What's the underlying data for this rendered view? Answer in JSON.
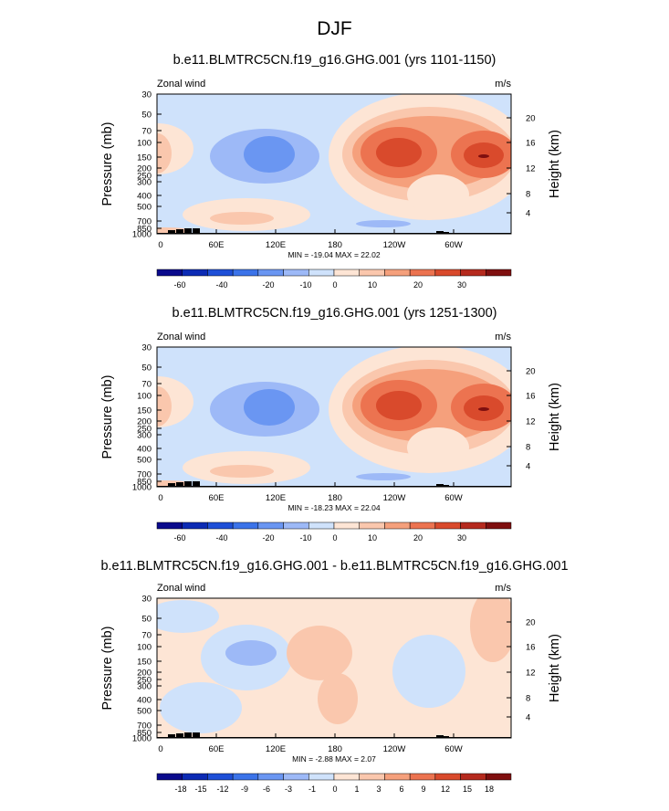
{
  "page": {
    "title": "DJF"
  },
  "colors": {
    "wind_scale": [
      "#0a0a8c",
      "#0c2bb4",
      "#1e4fd7",
      "#3b73e9",
      "#6a96f2",
      "#9db9f7",
      "#cfe2fb",
      "#fde5d5",
      "#fac7ad",
      "#f5a07c",
      "#ec7350",
      "#d94a2c",
      "#b52a1e",
      "#7f0f0f"
    ],
    "diff_scale": [
      "#0a0a8c",
      "#0c2bb4",
      "#1e4fd7",
      "#3b73e9",
      "#6a96f2",
      "#9db9f7",
      "#cfe2fb",
      "#fde5d5",
      "#fac7ad",
      "#f5a07c",
      "#ec7350",
      "#d94a2c",
      "#b52a1e",
      "#7f0f0f"
    ],
    "topography": "#000000"
  },
  "chart_data": [
    {
      "type": "heatmap",
      "title": "b.e11.BLMTRC5CN.f19_g16.GHG.001 (yrs 1101-1150)",
      "left_string": "Zonal wind",
      "right_string": "m/s",
      "xlabel": "",
      "ylabel": "Pressure (mb)",
      "y2label": "Height (km)",
      "x_ticks": [
        "0",
        "60E",
        "120E",
        "180",
        "120W",
        "60W"
      ],
      "y_ticks": [
        "30",
        "50",
        "70",
        "100",
        "150",
        "200",
        "250",
        "300",
        "400",
        "500",
        "700",
        "850",
        "1000"
      ],
      "y2_ticks": [
        "20",
        "16",
        "12",
        "8",
        "4"
      ],
      "stats": "MIN = -19.04  MAX = 22.02",
      "colorbar_labels": [
        "-60",
        "-40",
        "-20",
        "-10",
        "0",
        "10",
        "20",
        "30"
      ],
      "features": [
        {
          "lon": 60,
          "p": 180,
          "value": -12
        },
        {
          "lon": 200,
          "p": 150,
          "value": 20
        },
        {
          "lon": 240,
          "p": 150,
          "value": 22
        },
        {
          "lon": 300,
          "p": 150,
          "value": 21
        },
        {
          "lon": 90,
          "p": 700,
          "value": 8
        },
        {
          "lon": 230,
          "p": 400,
          "value": 2
        }
      ]
    },
    {
      "type": "heatmap",
      "title": "b.e11.BLMTRC5CN.f19_g16.GHG.001 (yrs 1251-1300)",
      "left_string": "Zonal wind",
      "right_string": "m/s",
      "xlabel": "",
      "ylabel": "Pressure (mb)",
      "y2label": "Height (km)",
      "x_ticks": [
        "0",
        "60E",
        "120E",
        "180",
        "120W",
        "60W"
      ],
      "y_ticks": [
        "30",
        "50",
        "70",
        "100",
        "150",
        "200",
        "250",
        "300",
        "400",
        "500",
        "700",
        "850",
        "1000"
      ],
      "y2_ticks": [
        "20",
        "16",
        "12",
        "8",
        "4"
      ],
      "stats": "MIN = -18.23  MAX = 22.04",
      "colorbar_labels": [
        "-60",
        "-40",
        "-20",
        "-10",
        "0",
        "10",
        "20",
        "30"
      ],
      "features": [
        {
          "lon": 120,
          "p": 150,
          "value": -12
        },
        {
          "lon": 240,
          "p": 150,
          "value": 22
        },
        {
          "lon": 310,
          "p": 150,
          "value": 21
        },
        {
          "lon": 90,
          "p": 700,
          "value": 8
        }
      ]
    },
    {
      "type": "heatmap",
      "title": "b.e11.BLMTRC5CN.f19_g16.GHG.001 - b.e11.BLMTRC5CN.f19_g16.GHG.001",
      "left_string": "Zonal wind",
      "right_string": "m/s",
      "xlabel": "",
      "ylabel": "Pressure (mb)",
      "y2label": "Height (km)",
      "x_ticks": [
        "0",
        "60E",
        "120E",
        "180",
        "120W",
        "60W"
      ],
      "y_ticks": [
        "30",
        "50",
        "70",
        "100",
        "150",
        "200",
        "250",
        "300",
        "400",
        "500",
        "700",
        "850",
        "1000"
      ],
      "y2_ticks": [
        "20",
        "16",
        "12",
        "8",
        "4"
      ],
      "stats": "MIN = -2.88  MAX = 2.07",
      "colorbar_labels": [
        "-18",
        "-15",
        "-12",
        "-9",
        "-6",
        "-3",
        "-1",
        "0",
        "1",
        "3",
        "6",
        "9",
        "12",
        "15",
        "18"
      ],
      "features": [
        {
          "lon": 90,
          "p": 100,
          "value": -2
        },
        {
          "lon": 180,
          "p": 500,
          "value": 2
        },
        {
          "lon": 170,
          "p": 100,
          "value": 1
        }
      ]
    }
  ]
}
